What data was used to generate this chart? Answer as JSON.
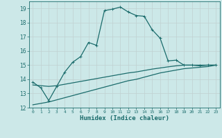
{
  "xlabel": "Humidex (Indice chaleur)",
  "bg_color": "#cce8e8",
  "grid_color": "#c8dada",
  "line_color": "#1a6b6b",
  "xlim": [
    -0.5,
    23.5
  ],
  "ylim": [
    12,
    19.5
  ],
  "yticks": [
    12,
    13,
    14,
    15,
    16,
    17,
    18,
    19
  ],
  "xticks": [
    0,
    1,
    2,
    3,
    4,
    5,
    6,
    7,
    8,
    9,
    10,
    11,
    12,
    13,
    14,
    15,
    16,
    17,
    18,
    19,
    20,
    21,
    22,
    23
  ],
  "curve1_x": [
    0,
    1,
    2,
    3,
    4,
    5,
    6,
    7,
    8,
    9,
    10,
    11,
    12,
    13,
    14,
    15,
    16,
    17,
    18,
    19,
    20,
    21,
    22,
    23
  ],
  "curve1_y": [
    13.8,
    13.4,
    12.5,
    13.5,
    14.5,
    15.2,
    15.6,
    16.6,
    16.4,
    18.85,
    18.95,
    19.1,
    18.75,
    18.5,
    18.45,
    17.5,
    16.9,
    15.3,
    15.35,
    15.0,
    15.0,
    14.95,
    15.0,
    15.0
  ],
  "curve2_x": [
    0,
    1,
    2,
    3,
    4,
    5,
    6,
    7,
    8,
    9,
    10,
    11,
    12,
    13,
    14,
    15,
    16,
    17,
    18,
    19,
    20,
    21,
    22,
    23
  ],
  "curve2_y": [
    12.2,
    12.3,
    12.4,
    12.55,
    12.7,
    12.85,
    13.0,
    13.15,
    13.3,
    13.45,
    13.6,
    13.75,
    13.9,
    14.0,
    14.15,
    14.3,
    14.45,
    14.55,
    14.65,
    14.75,
    14.8,
    14.85,
    14.9,
    15.0
  ],
  "curve3_x": [
    0,
    1,
    2,
    3,
    4,
    5,
    6,
    7,
    8,
    9,
    10,
    11,
    12,
    13,
    14,
    15,
    16,
    17,
    18,
    19,
    20,
    21,
    22,
    23
  ],
  "curve3_y": [
    13.6,
    13.55,
    13.5,
    13.55,
    13.65,
    13.75,
    13.85,
    13.95,
    14.05,
    14.15,
    14.25,
    14.35,
    14.45,
    14.52,
    14.62,
    14.72,
    14.8,
    14.88,
    14.95,
    15.0,
    15.0,
    15.0,
    15.0,
    15.0
  ]
}
